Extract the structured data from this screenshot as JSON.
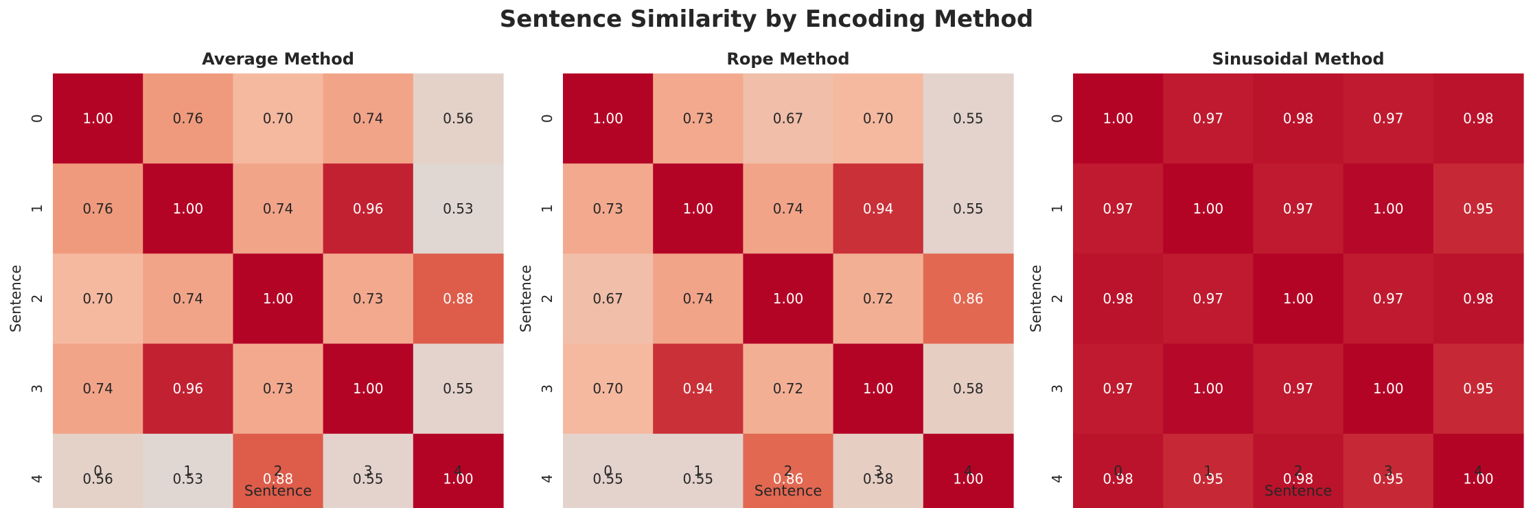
{
  "figure": {
    "title": "Sentence Similarity by Encoding Method"
  },
  "colors": {
    "min": "#dddcdb",
    "low": "#f5b9a0",
    "mid": "#ef9274",
    "high": "#e0604c",
    "max": "#b40426",
    "text_dark": "#262626",
    "text_light": "#ffffff"
  },
  "chart_data": [
    {
      "type": "heatmap",
      "title": "Average Method",
      "xlabel": "Sentence",
      "ylabel": "Sentence",
      "x_ticks": [
        "0",
        "1",
        "2",
        "3",
        "4"
      ],
      "y_ticks": [
        "0",
        "1",
        "2",
        "3",
        "4"
      ],
      "value_range": [
        0.5,
        1.0
      ],
      "colorbar": false,
      "cell_labels": [
        [
          "1.00",
          "0.76",
          "0.70",
          "0.74",
          "0.56"
        ],
        [
          "0.76",
          "1.00",
          "0.74",
          "0.96",
          "0.53"
        ],
        [
          "0.70",
          "0.74",
          "1.00",
          "0.73",
          "0.88"
        ],
        [
          "0.74",
          "0.96",
          "0.73",
          "1.00",
          "0.55"
        ],
        [
          "0.56",
          "0.53",
          "0.88",
          "0.55",
          "1.00"
        ]
      ],
      "values": [
        [
          1.0,
          0.76,
          0.7,
          0.74,
          0.56
        ],
        [
          0.76,
          1.0,
          0.74,
          0.96,
          0.53
        ],
        [
          0.7,
          0.74,
          1.0,
          0.73,
          0.88
        ],
        [
          0.74,
          0.96,
          0.73,
          1.0,
          0.55
        ],
        [
          0.56,
          0.53,
          0.88,
          0.55,
          1.0
        ]
      ]
    },
    {
      "type": "heatmap",
      "title": "Rope Method",
      "xlabel": "Sentence",
      "ylabel": "Sentence",
      "x_ticks": [
        "0",
        "1",
        "2",
        "3",
        "4"
      ],
      "y_ticks": [
        "0",
        "1",
        "2",
        "3",
        "4"
      ],
      "value_range": [
        0.5,
        1.0
      ],
      "colorbar": false,
      "cell_labels": [
        [
          "1.00",
          "0.73",
          "0.67",
          "0.70",
          "0.55"
        ],
        [
          "0.73",
          "1.00",
          "0.74",
          "0.94",
          "0.55"
        ],
        [
          "0.67",
          "0.74",
          "1.00",
          "0.72",
          "0.86"
        ],
        [
          "0.70",
          "0.94",
          "0.72",
          "1.00",
          "0.58"
        ],
        [
          "0.55",
          "0.55",
          "0.86",
          "0.58",
          "1.00"
        ]
      ],
      "values": [
        [
          1.0,
          0.73,
          0.67,
          0.7,
          0.55
        ],
        [
          0.73,
          1.0,
          0.74,
          0.94,
          0.55
        ],
        [
          0.67,
          0.74,
          1.0,
          0.72,
          0.86
        ],
        [
          0.7,
          0.94,
          0.72,
          1.0,
          0.58
        ],
        [
          0.55,
          0.55,
          0.86,
          0.58,
          1.0
        ]
      ]
    },
    {
      "type": "heatmap",
      "title": "Sinusoidal Method",
      "xlabel": "Sentence",
      "ylabel": "Sentence",
      "x_ticks": [
        "0",
        "1",
        "2",
        "3",
        "4"
      ],
      "y_ticks": [
        "0",
        "1",
        "2",
        "3",
        "4"
      ],
      "value_range": [
        0.5,
        1.0
      ],
      "colorbar": false,
      "cell_labels": [
        [
          "1.00",
          "0.97",
          "0.98",
          "0.97",
          "0.98"
        ],
        [
          "0.97",
          "1.00",
          "0.97",
          "1.00",
          "0.95"
        ],
        [
          "0.98",
          "0.97",
          "1.00",
          "0.97",
          "0.98"
        ],
        [
          "0.97",
          "1.00",
          "0.97",
          "1.00",
          "0.95"
        ],
        [
          "0.98",
          "0.95",
          "0.98",
          "0.95",
          "1.00"
        ]
      ],
      "values": [
        [
          1.0,
          0.97,
          0.98,
          0.97,
          0.98
        ],
        [
          0.97,
          1.0,
          0.97,
          0.995,
          0.95
        ],
        [
          0.98,
          0.97,
          1.0,
          0.97,
          0.98
        ],
        [
          0.97,
          0.995,
          0.97,
          1.0,
          0.95
        ],
        [
          0.98,
          0.95,
          0.98,
          0.95,
          1.0
        ]
      ]
    }
  ]
}
